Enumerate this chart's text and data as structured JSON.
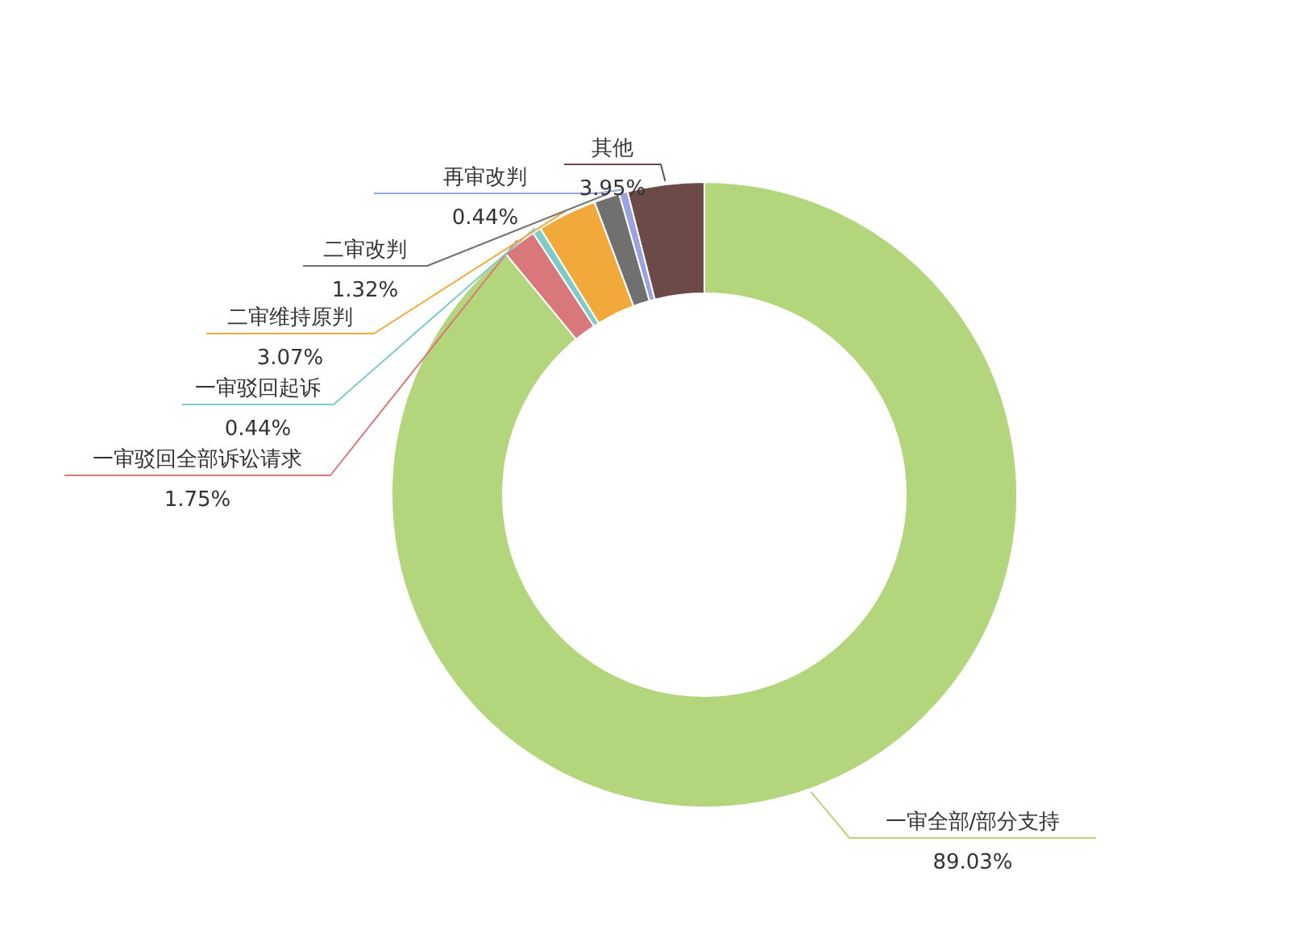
{
  "chart_data": {
    "type": "donut",
    "categories": [
      "一审全部/部分支持",
      "一审驳回全部诉讼请求",
      "一审驳回起诉",
      "二审维持原判",
      "二审改判",
      "再审改判",
      "其他"
    ],
    "values": [
      89.03,
      1.75,
      0.44,
      3.07,
      1.32,
      0.44,
      3.95
    ],
    "colors": [
      "#b3d67c",
      "#d9787a",
      "#7fcbc8",
      "#f2a93b",
      "#707070",
      "#99a3e0",
      "#6b4a48"
    ],
    "value_labels": [
      "89.03%",
      "1.75%",
      "0.44%",
      "3.07%",
      "1.32%",
      "0.44%",
      "3.95%"
    ]
  }
}
